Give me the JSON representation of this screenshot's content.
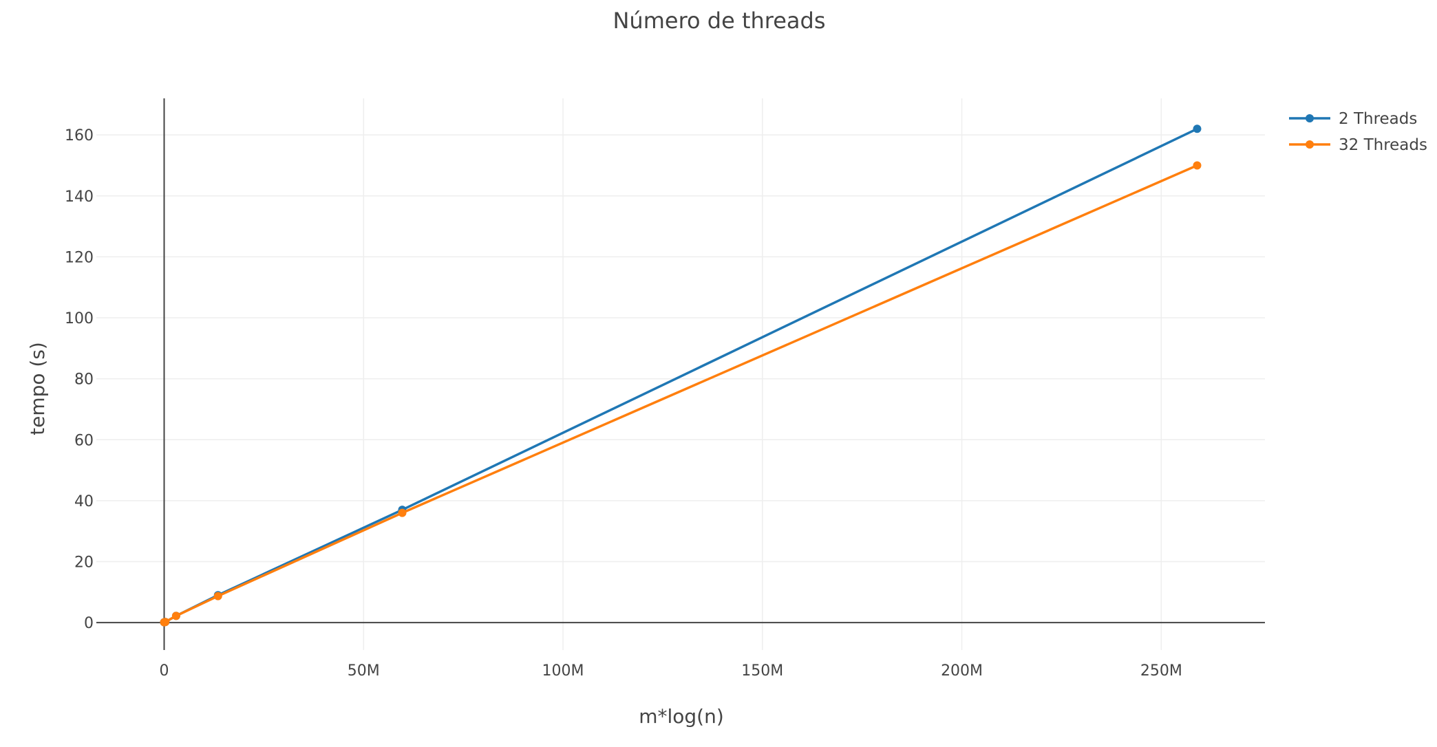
{
  "chart_data": {
    "type": "line",
    "title": "Número de threads",
    "xlabel": "m*log(n)",
    "ylabel": "tempo (s)",
    "xlim": [
      -17000000,
      276000000
    ],
    "ylim": [
      -9,
      172
    ],
    "x_ticks": [
      {
        "value": 0,
        "label": "0"
      },
      {
        "value": 50000000,
        "label": "50M"
      },
      {
        "value": 100000000,
        "label": "100M"
      },
      {
        "value": 150000000,
        "label": "150M"
      },
      {
        "value": 200000000,
        "label": "200M"
      },
      {
        "value": 250000000,
        "label": "250M"
      }
    ],
    "y_ticks": [
      {
        "value": 0,
        "label": "0"
      },
      {
        "value": 20,
        "label": "20"
      },
      {
        "value": 40,
        "label": "40"
      },
      {
        "value": 60,
        "label": "60"
      },
      {
        "value": 80,
        "label": "80"
      },
      {
        "value": 100,
        "label": "100"
      },
      {
        "value": 120,
        "label": "120"
      },
      {
        "value": 140,
        "label": "140"
      },
      {
        "value": 160,
        "label": "160"
      }
    ],
    "grid": true,
    "legend_position": "top-right",
    "series": [
      {
        "name": "2 Threads",
        "color": "#1f77b4",
        "x": [
          0,
          300000,
          3000000,
          13500000,
          59700000,
          259000000
        ],
        "y": [
          0.1,
          0.2,
          2.2,
          9.0,
          37.0,
          162.0
        ]
      },
      {
        "name": "32 Threads",
        "color": "#ff7f0e",
        "x": [
          0,
          300000,
          3000000,
          13500000,
          59700000,
          259000000
        ],
        "y": [
          0.1,
          0.2,
          2.2,
          8.7,
          36.0,
          150.0
        ]
      }
    ]
  }
}
